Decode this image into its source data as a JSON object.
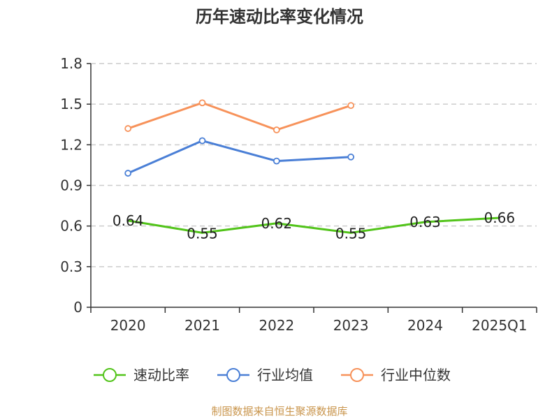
{
  "source_note": "制图数据来自恒生聚源数据库",
  "chart_data": {
    "type": "line",
    "title": "历年速动比率变化情况",
    "xlabel": "",
    "ylabel": "",
    "categories": [
      "2020",
      "2021",
      "2022",
      "2023",
      "2024",
      "2025Q1"
    ],
    "ylim": [
      0,
      1.8
    ],
    "yticks": [
      "0",
      "0.3",
      "0.6",
      "0.9",
      "1.2",
      "1.5",
      "1.8"
    ],
    "grid": true,
    "legend_position": "bottom",
    "series": [
      {
        "name": "速动比率",
        "color": "#52c41a",
        "values": [
          0.64,
          0.55,
          0.62,
          0.55,
          0.63,
          0.66
        ],
        "labels": [
          "0.64",
          "0.55",
          "0.62",
          "0.55",
          "0.63",
          "0.66"
        ],
        "markers": false
      },
      {
        "name": "行业均值",
        "color": "#4a7fd6",
        "values": [
          0.99,
          1.23,
          1.08,
          1.11,
          null,
          null
        ],
        "markers": true
      },
      {
        "name": "行业中位数",
        "color": "#f7925a",
        "values": [
          1.32,
          1.51,
          1.31,
          1.49,
          null,
          null
        ],
        "markers": true
      }
    ]
  }
}
